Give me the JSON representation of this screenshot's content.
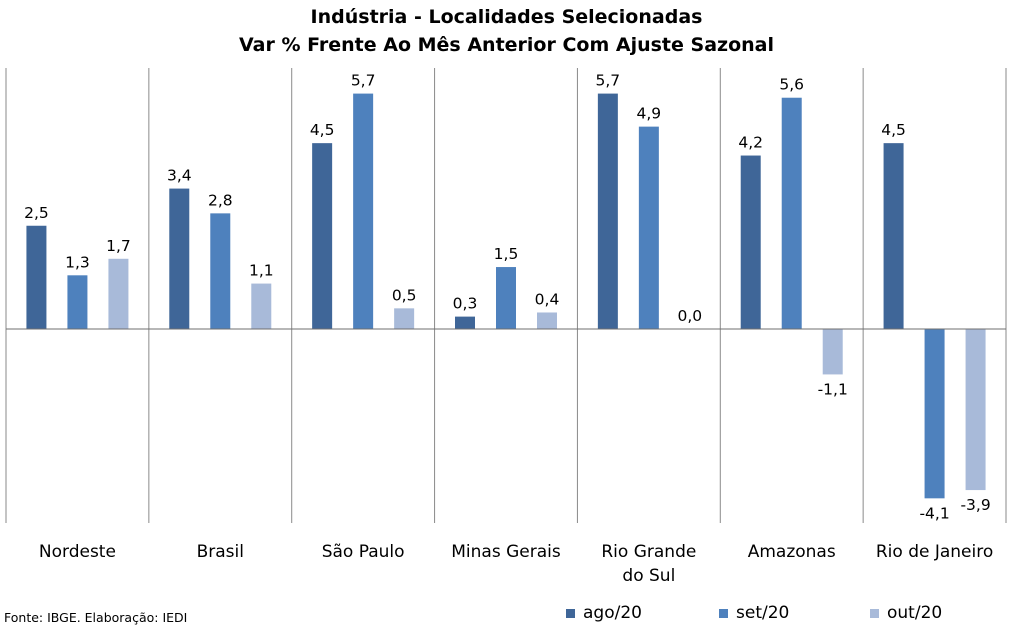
{
  "chart_data": {
    "type": "bar",
    "title": "Indústria - Localidades Selecionadas",
    "subtitle": "Var % Frente Ao Mês Anterior Com Ajuste Sazonal",
    "categories": [
      "Nordeste",
      "Brasil",
      "São Paulo",
      "Minas Gerais",
      "Rio Grande do Sul",
      "Amazonas",
      "Rio de Janeiro"
    ],
    "category_label_lines": [
      [
        "Nordeste"
      ],
      [
        "Brasil"
      ],
      [
        "São Paulo"
      ],
      [
        "Minas Gerais"
      ],
      [
        "Rio Grande",
        "do Sul"
      ],
      [
        "Amazonas"
      ],
      [
        "Rio de Janeiro"
      ]
    ],
    "series": [
      {
        "name": "ago/20",
        "color": "#3f6698",
        "values": [
          2.5,
          3.4,
          4.5,
          0.3,
          5.7,
          4.2,
          4.5
        ],
        "labels": [
          "2,5",
          "3,4",
          "4,5",
          "0,3",
          "5,7",
          "4,2",
          "4,5"
        ]
      },
      {
        "name": "set/20",
        "color": "#4e81bd",
        "values": [
          1.3,
          2.8,
          5.7,
          1.5,
          4.9,
          5.6,
          -4.1
        ],
        "labels": [
          "1,3",
          "2,8",
          "5,7",
          "1,5",
          "4,9",
          "5,6",
          "-4,1"
        ]
      },
      {
        "name": "out/20",
        "color": "#a8bad9",
        "values": [
          1.7,
          1.1,
          0.5,
          0.4,
          0.0,
          -1.1,
          -3.9
        ],
        "labels": [
          "1,7",
          "1,1",
          "0,5",
          "0,4",
          "0,0",
          "-1,1",
          "-3,9"
        ]
      }
    ],
    "ylim": [
      -4.8,
      6.4
    ],
    "grid": false,
    "legend_position": "bottom-right",
    "source": "Fonte: IBGE. Elaboração: IEDI"
  }
}
